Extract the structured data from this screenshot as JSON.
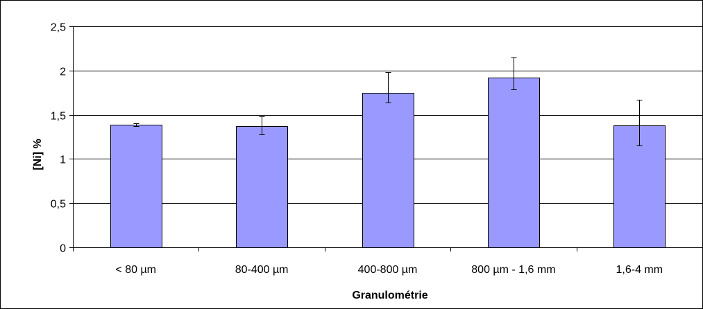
{
  "chart_data": {
    "type": "bar",
    "title": "",
    "xlabel": "Granulométrie",
    "ylabel": "[Ni] %",
    "categories": [
      "< 80 µm",
      "80-400 µm",
      "400-800 µm",
      "800 µm - 1,6 mm",
      "1,6-4 mm"
    ],
    "values": [
      1.385,
      1.37,
      1.75,
      1.92,
      1.38
    ],
    "error_low": [
      1.37,
      1.28,
      1.64,
      1.79,
      1.15
    ],
    "error_high": [
      1.4,
      1.48,
      1.98,
      2.15,
      1.67
    ],
    "ylim": [
      0,
      2.5
    ],
    "yticks": [
      "0",
      "0,5",
      "1",
      "1,5",
      "2",
      "2,5"
    ],
    "ytick_values": [
      0,
      0.5,
      1,
      1.5,
      2,
      2.5
    ],
    "grid": true,
    "legend": "none",
    "bar_color": "#9999ff"
  }
}
